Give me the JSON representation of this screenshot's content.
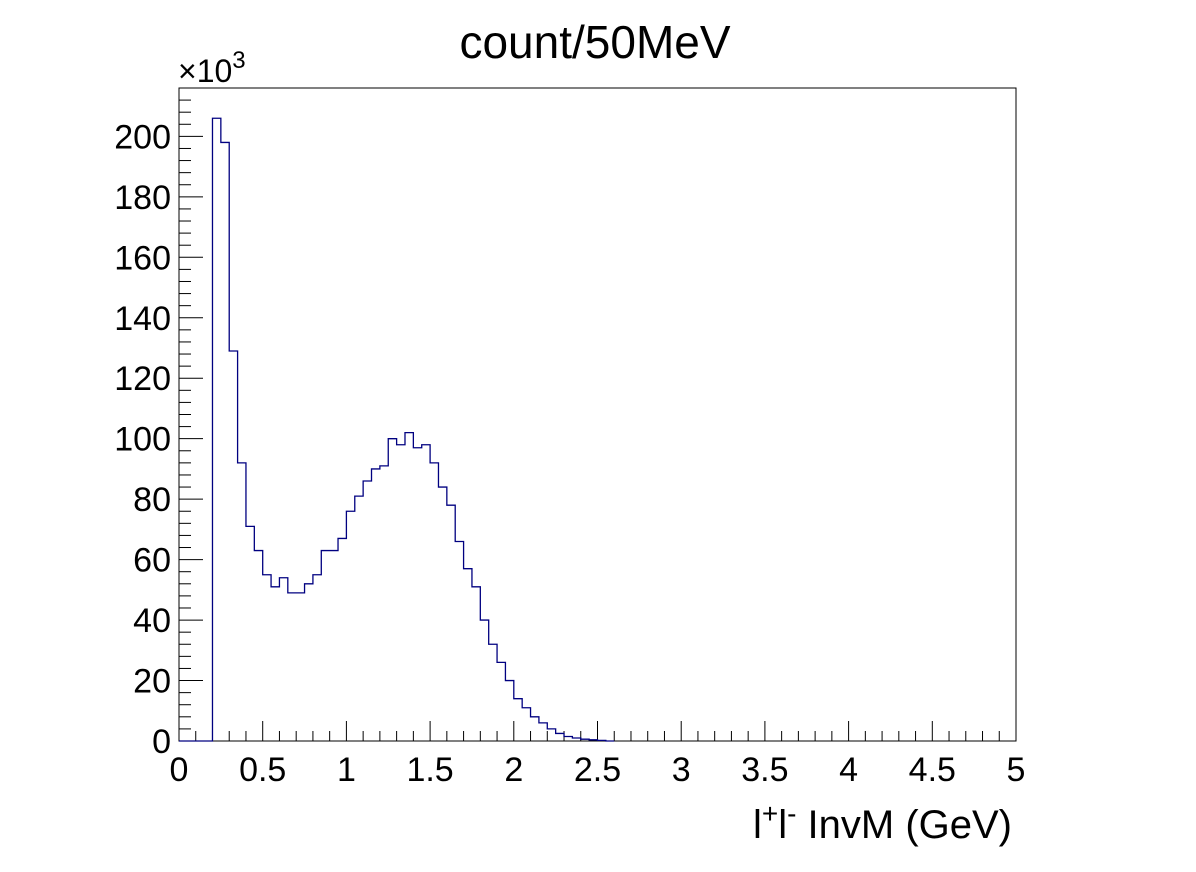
{
  "chart_data": {
    "type": "bar",
    "title": "count/50MeV",
    "xlabel_parts": {
      "l1": "l",
      "sup1": "+",
      "l2": "l",
      "sup2": "-",
      "rest": " InvM (GeV)"
    },
    "y_multiplier": {
      "base": "×10",
      "exp": "3"
    },
    "xlim": [
      0,
      5
    ],
    "ylim": [
      0,
      216
    ],
    "bin_width": 0.05,
    "line_color": "#000080",
    "x_ticks": [
      "0",
      "0.5",
      "1",
      "1.5",
      "2",
      "2.5",
      "3",
      "3.5",
      "4",
      "4.5",
      "5"
    ],
    "y_ticks": [
      "0",
      "20",
      "40",
      "60",
      "80",
      "100",
      "120",
      "140",
      "160",
      "180",
      "200"
    ],
    "bin_edges": [
      0,
      0.05,
      0.1,
      0.15,
      0.2,
      0.25,
      0.3,
      0.35,
      0.4,
      0.45,
      0.5,
      0.55,
      0.6,
      0.65,
      0.7,
      0.75,
      0.8,
      0.85,
      0.9,
      0.95,
      1.0,
      1.05,
      1.1,
      1.15,
      1.2,
      1.25,
      1.3,
      1.35,
      1.4,
      1.45,
      1.5,
      1.55,
      1.6,
      1.65,
      1.7,
      1.75,
      1.8,
      1.85,
      1.9,
      1.95,
      2.0,
      2.05,
      2.1,
      2.15,
      2.2,
      2.25,
      2.3,
      2.35,
      2.4,
      2.45,
      2.5,
      2.55,
      2.6
    ],
    "values": [
      0,
      0,
      0,
      0,
      206,
      198,
      129,
      92,
      71,
      63,
      55,
      51,
      54,
      49,
      49,
      52,
      55,
      63,
      63,
      67,
      76,
      81,
      86,
      90,
      91,
      100,
      98,
      102,
      97,
      98,
      92,
      84,
      78,
      66,
      57,
      51,
      40,
      32,
      26,
      20,
      14,
      11,
      8,
      6,
      4,
      2.5,
      1.5,
      1,
      0.6,
      0.4,
      0.2,
      0
    ]
  }
}
